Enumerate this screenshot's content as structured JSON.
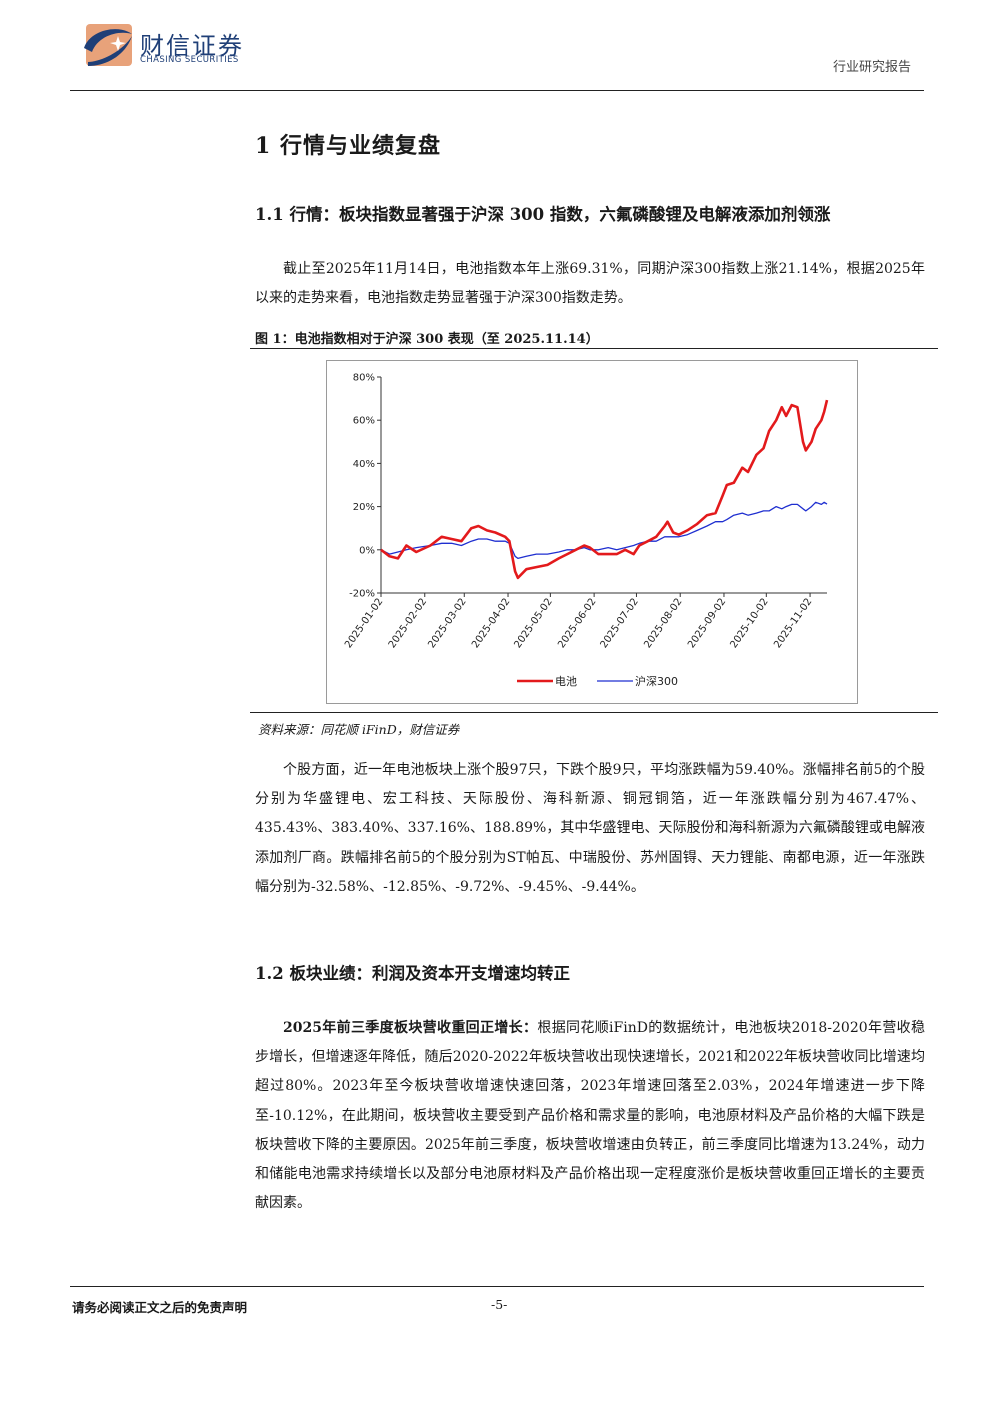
{
  "header": {
    "brand_cn": "财信证券",
    "brand_en": "CHASING SECURITIES",
    "report_type": "行业研究报告",
    "logo_colors": {
      "swoosh": "#1f3f77",
      "accent": "#e8a27a"
    }
  },
  "section1_title": "1 行情与业绩复盘",
  "section1_1": {
    "title": "1.1 行情：板块指数显著强于沪深 300 指数，六氟磷酸锂及电解液添加剂领涨",
    "paragraph": "截止至2025年11月14日，电池指数本年上涨69.31%，同期沪深300指数上涨21.14%，根据2025年以来的走势来看，电池指数走势显著强于沪深300指数走势。"
  },
  "figure1": {
    "caption": "图 1：电池指数相对于沪深 300 表现（至 2025.11.14）",
    "source": "资料来源：同花顺 iFinD，财信证券"
  },
  "chart_data": {
    "type": "line",
    "title": "",
    "xlabel": "",
    "ylabel": "",
    "ylim": [
      -20,
      80
    ],
    "y_ticks": [
      "-20%",
      "0%",
      "20%",
      "40%",
      "60%",
      "80%"
    ],
    "x_ticks": [
      "2025-01-02",
      "2025-02-02",
      "2025-03-02",
      "2025-04-02",
      "2025-05-02",
      "2025-06-02",
      "2025-07-02",
      "2025-08-02",
      "2025-09-02",
      "2025-10-02",
      "2025-11-02"
    ],
    "grid": false,
    "legend_position": "bottom",
    "series": [
      {
        "name": "电池",
        "color": "#e31a1c",
        "points": [
          [
            "2025-01-02",
            0
          ],
          [
            "2025-01-08",
            -3
          ],
          [
            "2025-01-14",
            -4
          ],
          [
            "2025-01-20",
            2
          ],
          [
            "2025-01-27",
            -1
          ],
          [
            "2025-02-06",
            2
          ],
          [
            "2025-02-14",
            6
          ],
          [
            "2025-02-21",
            5
          ],
          [
            "2025-02-28",
            4
          ],
          [
            "2025-03-07",
            10
          ],
          [
            "2025-03-12",
            11
          ],
          [
            "2025-03-18",
            9
          ],
          [
            "2025-03-24",
            8
          ],
          [
            "2025-03-31",
            6
          ],
          [
            "2025-04-03",
            4
          ],
          [
            "2025-04-07",
            -10
          ],
          [
            "2025-04-09",
            -13
          ],
          [
            "2025-04-15",
            -9
          ],
          [
            "2025-04-22",
            -8
          ],
          [
            "2025-04-30",
            -7
          ],
          [
            "2025-05-08",
            -4
          ],
          [
            "2025-05-14",
            -2
          ],
          [
            "2025-05-20",
            0
          ],
          [
            "2025-05-26",
            2
          ],
          [
            "2025-05-30",
            1
          ],
          [
            "2025-06-05",
            -2
          ],
          [
            "2025-06-12",
            -2
          ],
          [
            "2025-06-18",
            -2
          ],
          [
            "2025-06-24",
            0
          ],
          [
            "2025-06-30",
            -2
          ],
          [
            "2025-07-04",
            2
          ],
          [
            "2025-07-10",
            4
          ],
          [
            "2025-07-16",
            6
          ],
          [
            "2025-07-22",
            11
          ],
          [
            "2025-07-24",
            13
          ],
          [
            "2025-07-28",
            8
          ],
          [
            "2025-08-01",
            7
          ],
          [
            "2025-08-07",
            9
          ],
          [
            "2025-08-14",
            12
          ],
          [
            "2025-08-21",
            16
          ],
          [
            "2025-08-27",
            17
          ],
          [
            "2025-09-01",
            25
          ],
          [
            "2025-09-04",
            30
          ],
          [
            "2025-09-09",
            31
          ],
          [
            "2025-09-15",
            38
          ],
          [
            "2025-09-19",
            36
          ],
          [
            "2025-09-25",
            44
          ],
          [
            "2025-09-30",
            47
          ],
          [
            "2025-10-04",
            55
          ],
          [
            "2025-10-09",
            60
          ],
          [
            "2025-10-13",
            66
          ],
          [
            "2025-10-16",
            62
          ],
          [
            "2025-10-20",
            67
          ],
          [
            "2025-10-24",
            66
          ],
          [
            "2025-10-28",
            50
          ],
          [
            "2025-10-30",
            46
          ],
          [
            "2025-11-03",
            50
          ],
          [
            "2025-11-06",
            56
          ],
          [
            "2025-11-10",
            60
          ],
          [
            "2025-11-12",
            64
          ],
          [
            "2025-11-14",
            69.31
          ]
        ]
      },
      {
        "name": "沪深300",
        "color": "#1f2fd0",
        "points": [
          [
            "2025-01-02",
            0
          ],
          [
            "2025-01-08",
            -2
          ],
          [
            "2025-01-14",
            -1
          ],
          [
            "2025-01-20",
            0
          ],
          [
            "2025-01-27",
            1
          ],
          [
            "2025-02-06",
            2
          ],
          [
            "2025-02-14",
            3
          ],
          [
            "2025-02-21",
            3
          ],
          [
            "2025-02-28",
            2
          ],
          [
            "2025-03-07",
            4
          ],
          [
            "2025-03-12",
            5
          ],
          [
            "2025-03-18",
            5
          ],
          [
            "2025-03-24",
            4
          ],
          [
            "2025-03-31",
            4
          ],
          [
            "2025-04-03",
            3
          ],
          [
            "2025-04-07",
            -3
          ],
          [
            "2025-04-09",
            -4
          ],
          [
            "2025-04-15",
            -3
          ],
          [
            "2025-04-22",
            -2
          ],
          [
            "2025-04-30",
            -2
          ],
          [
            "2025-05-08",
            -1
          ],
          [
            "2025-05-14",
            0
          ],
          [
            "2025-05-20",
            0
          ],
          [
            "2025-05-26",
            1
          ],
          [
            "2025-05-30",
            0
          ],
          [
            "2025-06-05",
            0
          ],
          [
            "2025-06-12",
            1
          ],
          [
            "2025-06-18",
            0
          ],
          [
            "2025-06-24",
            1
          ],
          [
            "2025-06-30",
            2
          ],
          [
            "2025-07-04",
            3
          ],
          [
            "2025-07-10",
            4
          ],
          [
            "2025-07-16",
            4
          ],
          [
            "2025-07-22",
            6
          ],
          [
            "2025-07-24",
            6
          ],
          [
            "2025-07-28",
            6
          ],
          [
            "2025-08-01",
            6
          ],
          [
            "2025-08-07",
            7
          ],
          [
            "2025-08-14",
            9
          ],
          [
            "2025-08-21",
            11
          ],
          [
            "2025-08-27",
            13
          ],
          [
            "2025-09-01",
            13
          ],
          [
            "2025-09-04",
            14
          ],
          [
            "2025-09-09",
            16
          ],
          [
            "2025-09-15",
            17
          ],
          [
            "2025-09-19",
            16
          ],
          [
            "2025-09-25",
            17
          ],
          [
            "2025-09-30",
            18
          ],
          [
            "2025-10-04",
            18
          ],
          [
            "2025-10-09",
            20
          ],
          [
            "2025-10-13",
            19
          ],
          [
            "2025-10-16",
            20
          ],
          [
            "2025-10-20",
            21
          ],
          [
            "2025-10-24",
            21
          ],
          [
            "2025-10-28",
            19
          ],
          [
            "2025-10-30",
            18
          ],
          [
            "2025-11-03",
            20
          ],
          [
            "2025-11-06",
            22
          ],
          [
            "2025-11-10",
            21
          ],
          [
            "2025-11-12",
            22
          ],
          [
            "2025-11-14",
            21.14
          ]
        ]
      }
    ]
  },
  "paragraph2": "个股方面，近一年电池板块上涨个股97只，下跌个股9只，平均涨跌幅为59.40%。涨幅排名前5的个股分别为华盛锂电、宏工科技、天际股份、海科新源、铜冠铜箔，近一年涨跌幅分别为467.47%、435.43%、383.40%、337.16%、188.89%，其中华盛锂电、天际股份和海科新源为六氟磷酸锂或电解液添加剂厂商。跌幅排名前5的个股分别为ST帕瓦、中瑞股份、苏州固锝、天力锂能、南都电源，近一年涨跌幅分别为-32.58%、-12.85%、-9.72%、-9.45%、-9.44%。",
  "section1_2": {
    "title": "1.2 板块业绩：利润及资本开支增速均转正",
    "lead": "2025年前三季度板块营收重回正增长：",
    "paragraph": "根据同花顺iFinD的数据统计，电池板块2018-2020年营收稳步增长，但增速逐年降低，随后2020-2022年板块营收出现快速增长，2021和2022年板块营收同比增速均超过80%。2023年至今板块营收增速快速回落，2023年增速回落至2.03%，2024年增速进一步下降至-10.12%，在此期间，板块营收主要受到产品价格和需求量的影响，电池原材料及产品价格的大幅下跌是板块营收下降的主要原因。2025年前三季度，板块营收增速由负转正，前三季度同比增速为13.24%，动力和储能电池需求持续增长以及部分电池原材料及产品价格出现一定程度涨价是板块营收重回正增长的主要贡献因素。"
  },
  "footer": {
    "disclaimer": "请务必阅读正文之后的免责声明",
    "page": "-5-"
  }
}
